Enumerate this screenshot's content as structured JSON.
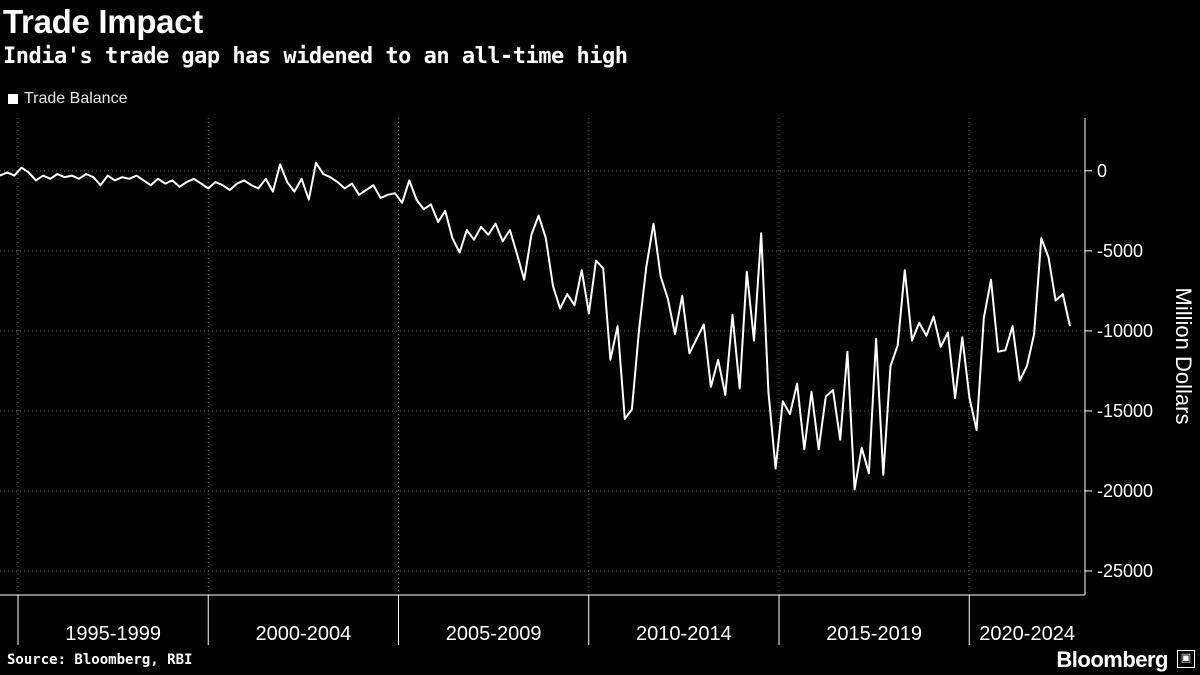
{
  "header": {
    "title": "Trade Impact",
    "subtitle": "India's trade gap has widened to an all-time high"
  },
  "legend": {
    "label": "Trade Balance",
    "color": "#ffffff"
  },
  "footer": {
    "source": "Source: Bloomberg, RBI",
    "brand": "Bloomberg",
    "brand_icon": "▣"
  },
  "chart_data": {
    "type": "line",
    "title": "Trade Impact",
    "subtitle": "India's trade gap has widened to an all-time high",
    "xlabel": "",
    "ylabel": "Million Dollars",
    "y_axis_side": "right",
    "ylim": [
      -26500,
      3300
    ],
    "y_ticks": [
      0,
      -5000,
      -10000,
      -15000,
      -20000,
      -25000
    ],
    "y_tick_labels": [
      "0",
      "-5000",
      "-10000",
      "-15000",
      "-20000",
      "-25000"
    ],
    "xlim": [
      1994.0,
      2023.8
    ],
    "x_bands": [
      {
        "label": "1995-1999",
        "start": 1995
      },
      {
        "label": "2000-2004",
        "start": 2000
      },
      {
        "label": "2005-2009",
        "start": 2005
      },
      {
        "label": "2010-2014",
        "start": 2010
      },
      {
        "label": "2015-2019",
        "start": 2015
      },
      {
        "label": "2020-2024",
        "start": 2020
      }
    ],
    "grid": true,
    "series": [
      {
        "name": "Trade Balance",
        "color": "#ffffff",
        "points": [
          [
            1994.0,
            -300
          ],
          [
            1994.2,
            -100
          ],
          [
            1994.4,
            -300
          ],
          [
            1994.6,
            200
          ],
          [
            1994.8,
            -100
          ],
          [
            1995.0,
            -600
          ],
          [
            1995.2,
            -300
          ],
          [
            1995.4,
            -500
          ],
          [
            1995.6,
            -200
          ],
          [
            1995.8,
            -400
          ],
          [
            1996.0,
            -300
          ],
          [
            1996.2,
            -500
          ],
          [
            1996.4,
            -200
          ],
          [
            1996.6,
            -400
          ],
          [
            1996.8,
            -900
          ],
          [
            1997.0,
            -300
          ],
          [
            1997.2,
            -600
          ],
          [
            1997.4,
            -400
          ],
          [
            1997.6,
            -500
          ],
          [
            1997.8,
            -300
          ],
          [
            1998.0,
            -600
          ],
          [
            1998.2,
            -900
          ],
          [
            1998.4,
            -500
          ],
          [
            1998.6,
            -800
          ],
          [
            1998.8,
            -600
          ],
          [
            1999.0,
            -1000
          ],
          [
            1999.2,
            -700
          ],
          [
            1999.4,
            -500
          ],
          [
            1999.6,
            -800
          ],
          [
            1999.8,
            -1100
          ],
          [
            2000.0,
            -700
          ],
          [
            2000.2,
            -900
          ],
          [
            2000.4,
            -1200
          ],
          [
            2000.6,
            -800
          ],
          [
            2000.8,
            -600
          ],
          [
            2001.0,
            -900
          ],
          [
            2001.2,
            -1100
          ],
          [
            2001.4,
            -500
          ],
          [
            2001.6,
            -1300
          ],
          [
            2001.8,
            400
          ],
          [
            2002.0,
            -700
          ],
          [
            2002.2,
            -1300
          ],
          [
            2002.4,
            -500
          ],
          [
            2002.6,
            -1800
          ],
          [
            2002.8,
            500
          ],
          [
            2003.0,
            -200
          ],
          [
            2003.2,
            -400
          ],
          [
            2003.4,
            -700
          ],
          [
            2003.6,
            -1100
          ],
          [
            2003.8,
            -800
          ],
          [
            2004.0,
            -1500
          ],
          [
            2004.2,
            -1200
          ],
          [
            2004.4,
            -900
          ],
          [
            2004.6,
            -1700
          ],
          [
            2004.8,
            -1500
          ],
          [
            2005.0,
            -1400
          ],
          [
            2005.2,
            -2000
          ],
          [
            2005.4,
            -600
          ],
          [
            2005.6,
            -1800
          ],
          [
            2005.8,
            -2400
          ],
          [
            2006.0,
            -2100
          ],
          [
            2006.2,
            -3200
          ],
          [
            2006.4,
            -2500
          ],
          [
            2006.6,
            -4200
          ],
          [
            2006.8,
            -5100
          ],
          [
            2007.0,
            -3700
          ],
          [
            2007.2,
            -4300
          ],
          [
            2007.4,
            -3500
          ],
          [
            2007.6,
            -4000
          ],
          [
            2007.8,
            -3300
          ],
          [
            2008.0,
            -4400
          ],
          [
            2008.2,
            -3700
          ],
          [
            2008.4,
            -5200
          ],
          [
            2008.6,
            -6800
          ],
          [
            2008.8,
            -4000
          ],
          [
            2009.0,
            -2800
          ],
          [
            2009.2,
            -4200
          ],
          [
            2009.4,
            -7200
          ],
          [
            2009.6,
            -8600
          ],
          [
            2009.8,
            -7700
          ],
          [
            2010.0,
            -8400
          ],
          [
            2010.2,
            -6200
          ],
          [
            2010.4,
            -8900
          ],
          [
            2010.6,
            -5600
          ],
          [
            2010.8,
            -6100
          ],
          [
            2011.0,
            -11800
          ],
          [
            2011.2,
            -9700
          ],
          [
            2011.4,
            -15500
          ],
          [
            2011.6,
            -14900
          ],
          [
            2011.8,
            -9900
          ],
          [
            2012.0,
            -6000
          ],
          [
            2012.2,
            -3300
          ],
          [
            2012.4,
            -6600
          ],
          [
            2012.6,
            -8000
          ],
          [
            2012.8,
            -10200
          ],
          [
            2013.0,
            -7800
          ],
          [
            2013.2,
            -11400
          ],
          [
            2013.4,
            -10500
          ],
          [
            2013.6,
            -9600
          ],
          [
            2013.8,
            -13500
          ],
          [
            2014.0,
            -11800
          ],
          [
            2014.2,
            -14000
          ],
          [
            2014.4,
            -9000
          ],
          [
            2014.6,
            -13600
          ],
          [
            2014.8,
            -6300
          ],
          [
            2015.0,
            -10600
          ],
          [
            2015.2,
            -3900
          ],
          [
            2015.4,
            -13800
          ],
          [
            2015.6,
            -18600
          ],
          [
            2015.8,
            -14400
          ],
          [
            2016.0,
            -15200
          ],
          [
            2016.2,
            -13300
          ],
          [
            2016.4,
            -17400
          ],
          [
            2016.6,
            -13800
          ],
          [
            2016.8,
            -17400
          ],
          [
            2017.0,
            -14100
          ],
          [
            2017.2,
            -13700
          ],
          [
            2017.4,
            -16800
          ],
          [
            2017.6,
            -11300
          ],
          [
            2017.8,
            -19900
          ],
          [
            2018.0,
            -17300
          ],
          [
            2018.2,
            -18900
          ],
          [
            2018.4,
            -10500
          ],
          [
            2018.6,
            -19000
          ],
          [
            2018.8,
            -12200
          ],
          [
            2019.0,
            -10900
          ],
          [
            2019.2,
            -6200
          ],
          [
            2019.4,
            -10600
          ],
          [
            2019.6,
            -9500
          ],
          [
            2019.8,
            -10300
          ],
          [
            2020.0,
            -9100
          ],
          [
            2020.2,
            -11000
          ],
          [
            2020.4,
            -10100
          ],
          [
            2020.6,
            -14200
          ],
          [
            2020.8,
            -10400
          ],
          [
            2021.0,
            -14200
          ],
          [
            2021.2,
            -16200
          ],
          [
            2021.4,
            -9200
          ],
          [
            2021.6,
            -6800
          ],
          [
            2021.8,
            -11300
          ],
          [
            2022.0,
            -11200
          ],
          [
            2022.2,
            -9700
          ],
          [
            2022.4,
            -13100
          ],
          [
            2022.6,
            -12200
          ],
          [
            2022.8,
            -10200
          ],
          [
            2023.0,
            -4200
          ],
          [
            2023.2,
            -5400
          ],
          [
            2023.4,
            -8100
          ],
          [
            2023.6,
            -7700
          ],
          [
            2023.8,
            -9700
          ]
        ]
      }
    ]
  }
}
